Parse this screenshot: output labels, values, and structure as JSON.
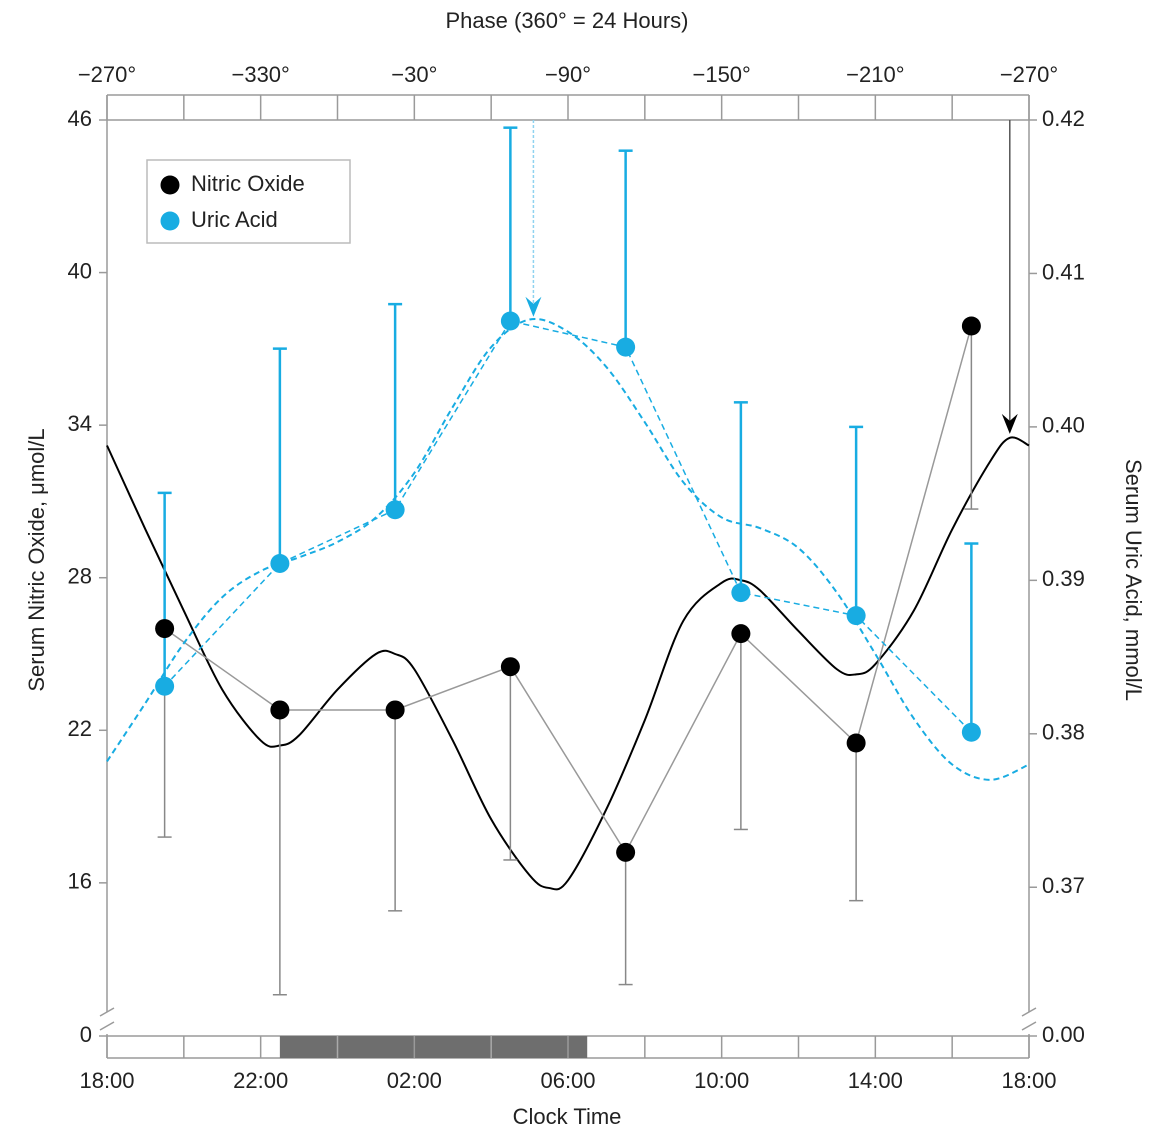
{
  "chart_data": {
    "type": "line",
    "title": "Phase (360° = 24 Hours)",
    "x_label": "Clock Time",
    "y_label": "Serum Nitric Oxide, μmol/L",
    "y2_label": "Serum Uric Acid, mmol/L",
    "x": [
      1.5,
      4.5,
      7.5,
      10.5,
      13.5,
      16.5,
      19.5,
      22.5
    ],
    "xlim": [
      0,
      24
    ],
    "xticks": [
      {
        "value": 0,
        "label": "18:00"
      },
      {
        "value": 4,
        "label": "22:00"
      },
      {
        "value": 8,
        "label": "02:00"
      },
      {
        "value": 12,
        "label": "06:00"
      },
      {
        "value": 16,
        "label": "10:00"
      },
      {
        "value": 20,
        "label": "14:00"
      },
      {
        "value": 24,
        "label": "18:00"
      }
    ],
    "x2lim": [
      -270,
      -630
    ],
    "x2ticks": [
      {
        "value": -270,
        "label": "−270°"
      },
      {
        "value": -330,
        "label": "−330°"
      },
      {
        "value": -390,
        "label": "−30°"
      },
      {
        "value": -450,
        "label": "−90°"
      },
      {
        "value": -510,
        "label": "−150°"
      },
      {
        "value": -570,
        "label": "−210°"
      },
      {
        "value": -630,
        "label": "−270°"
      }
    ],
    "ylim": [
      0,
      46
    ],
    "y_break": [
      0,
      11
    ],
    "yticks": [
      0,
      16,
      22,
      28,
      34,
      40,
      46
    ],
    "y2lim": [
      0,
      0.42
    ],
    "y2_break": [
      0,
      0.362
    ],
    "y2ticks": [
      {
        "value": 0,
        "label": "0.00"
      },
      0.37,
      0.38,
      0.39,
      {
        "value": 0.4,
        "label": "0.40"
      },
      0.41,
      0.42
    ],
    "dark_period": [
      4.5,
      12.5
    ],
    "legend": "upper left",
    "series": [
      {
        "name": "Nitric Oxide",
        "color": "#000000",
        "axis": "y",
        "values": [
          26.0,
          22.8,
          22.8,
          24.5,
          17.2,
          25.8,
          21.5,
          37.9
        ],
        "errors": [
          8.2,
          11.2,
          7.9,
          7.6,
          5.2,
          7.7,
          6.2,
          7.2
        ],
        "error_side": "lower",
        "fit": {
          "x": [
            0,
            1,
            2,
            3,
            4,
            4.5,
            5,
            6,
            7,
            7.5,
            8,
            9,
            10,
            11,
            11.5,
            12,
            13,
            14,
            15,
            16,
            16.5,
            17,
            18,
            19,
            19.5,
            20,
            21,
            22,
            23,
            23.5,
            24
          ],
          "values": [
            33.2,
            29.9,
            26.7,
            23.6,
            21.6,
            21.4,
            21.8,
            23.6,
            25.0,
            25.0,
            24.4,
            21.6,
            18.5,
            16.3,
            15.8,
            16.1,
            18.9,
            22.4,
            26.3,
            27.8,
            27.9,
            27.5,
            25.9,
            24.4,
            24.2,
            24.6,
            26.7,
            29.9,
            32.6,
            33.5,
            33.2
          ]
        },
        "acrophase": 23.5
      },
      {
        "name": "Uric Acid",
        "color": "#18ace2",
        "axis": "y2",
        "values": [
          0.3831,
          0.3911,
          0.3946,
          0.4069,
          0.4052,
          0.3892,
          0.3877,
          0.3801
        ],
        "errors": [
          0.0126,
          0.014,
          0.0134,
          0.0126,
          0.0128,
          0.0124,
          0.0123,
          0.0123
        ],
        "error_side": "upper",
        "fit": {
          "x": [
            0,
            1,
            2,
            3,
            4,
            5,
            6,
            7,
            8,
            9,
            10,
            11,
            12,
            13,
            14,
            15,
            16,
            17,
            18,
            19,
            20,
            21,
            22,
            23,
            24
          ],
          "values": [
            0.3782,
            0.382,
            0.3859,
            0.3889,
            0.3906,
            0.3915,
            0.3925,
            0.3941,
            0.397,
            0.4013,
            0.4052,
            0.407,
            0.4062,
            0.4039,
            0.4003,
            0.3964,
            0.3941,
            0.3934,
            0.3921,
            0.3892,
            0.3852,
            0.381,
            0.378,
            0.377,
            0.378
          ]
        },
        "acrophase": 11.1
      }
    ]
  }
}
